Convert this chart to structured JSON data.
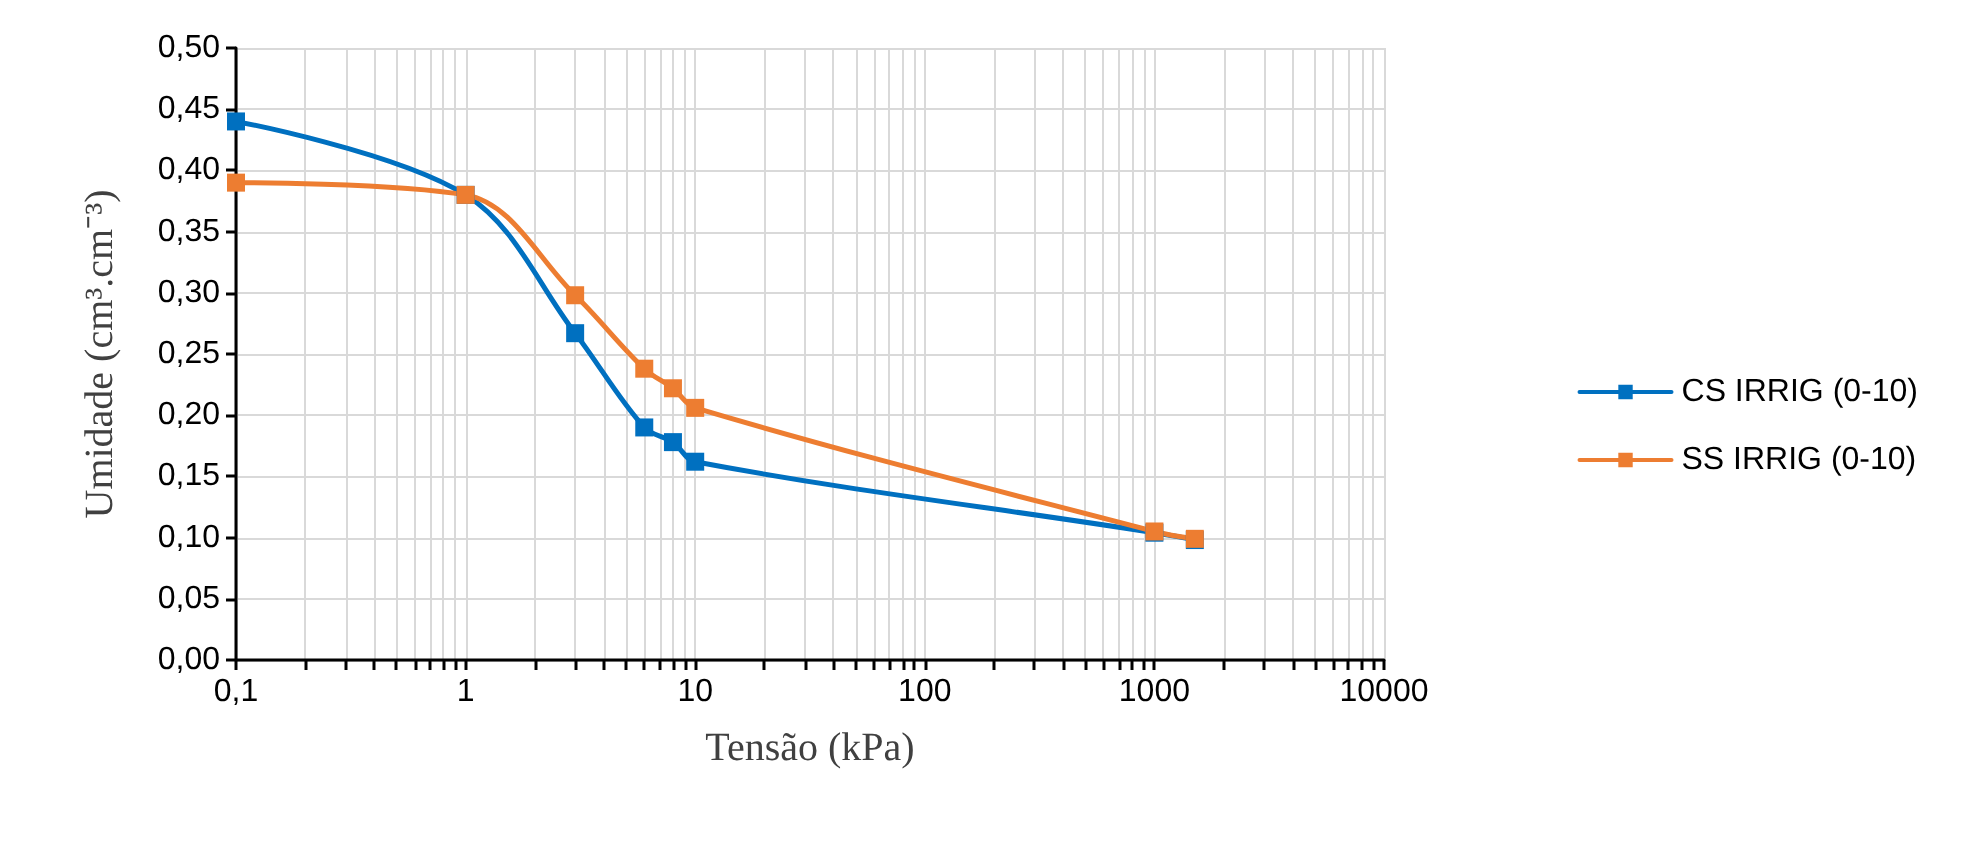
{
  "chart_data": {
    "type": "line",
    "xlabel": "Tensão (kPa)",
    "ylabel": "Umidade (cm³.cm⁻³)",
    "log": "x",
    "grid": true,
    "legend": "right",
    "marker": "square",
    "line_style": "solid",
    "xlim": [
      0.1,
      10000
    ],
    "xticks": [
      {
        "value": 0.1,
        "label": "0,1"
      },
      {
        "value": 0.2,
        "label": null
      },
      {
        "value": 0.3,
        "label": null
      },
      {
        "value": 0.4,
        "label": null
      },
      {
        "value": 0.5,
        "label": null
      },
      {
        "value": 0.6,
        "label": null
      },
      {
        "value": 0.7,
        "label": null
      },
      {
        "value": 0.8,
        "label": null
      },
      {
        "value": 0.9,
        "label": null
      },
      1,
      {
        "value": 2,
        "label": null
      },
      {
        "value": 3,
        "label": null
      },
      {
        "value": 4,
        "label": null
      },
      {
        "value": 5,
        "label": null
      },
      {
        "value": 6,
        "label": null
      },
      {
        "value": 7,
        "label": null
      },
      {
        "value": 8,
        "label": null
      },
      {
        "value": 9,
        "label": null
      },
      10,
      {
        "value": 20,
        "label": null
      },
      {
        "value": 30,
        "label": null
      },
      {
        "value": 40,
        "label": null
      },
      {
        "value": 50,
        "label": null
      },
      {
        "value": 60,
        "label": null
      },
      {
        "value": 70,
        "label": null
      },
      {
        "value": 80,
        "label": null
      },
      {
        "value": 90,
        "label": null
      },
      100,
      {
        "value": 200,
        "label": null
      },
      {
        "value": 300,
        "label": null
      },
      {
        "value": 400,
        "label": null
      },
      {
        "value": 500,
        "label": null
      },
      {
        "value": 600,
        "label": null
      },
      {
        "value": 700,
        "label": null
      },
      {
        "value": 800,
        "label": null
      },
      {
        "value": 900,
        "label": null
      },
      1000,
      {
        "value": 2000,
        "label": null
      },
      {
        "value": 3000,
        "label": null
      },
      {
        "value": 4000,
        "label": null
      },
      {
        "value": 5000,
        "label": null
      },
      {
        "value": 6000,
        "label": null
      },
      {
        "value": 7000,
        "label": null
      },
      {
        "value": 8000,
        "label": null
      },
      {
        "value": 9000,
        "label": null
      },
      10000
    ],
    "ylim": [
      0,
      0.5
    ],
    "yticks": [
      {
        "value": 0,
        "label": "0,00"
      },
      {
        "value": 0.05,
        "label": "0,05"
      },
      {
        "value": 0.1,
        "label": "0,10"
      },
      {
        "value": 0.15,
        "label": "0,15"
      },
      {
        "value": 0.2,
        "label": "0,20"
      },
      {
        "value": 0.25,
        "label": "0,25"
      },
      {
        "value": 0.3,
        "label": "0,30"
      },
      {
        "value": 0.35,
        "label": "0,35"
      },
      {
        "value": 0.4,
        "label": "0,40"
      },
      {
        "value": 0.45,
        "label": "0,45"
      },
      {
        "value": 0.5,
        "label": "0,50"
      }
    ],
    "x": [
      0.1,
      1,
      3,
      6,
      8,
      10,
      1000,
      1500
    ],
    "series": [
      {
        "name": "CS IRRIG (0-10)",
        "color": "#0070c0",
        "values": [
          0.44,
          0.38,
          0.267,
          0.19,
          0.178,
          0.162,
          0.104,
          0.098
        ]
      },
      {
        "name": "SS IRRIG (0-10)",
        "color": "#ed7d31",
        "values": [
          0.39,
          0.38,
          0.298,
          0.238,
          0.222,
          0.206,
          0.105,
          0.099
        ]
      }
    ]
  }
}
